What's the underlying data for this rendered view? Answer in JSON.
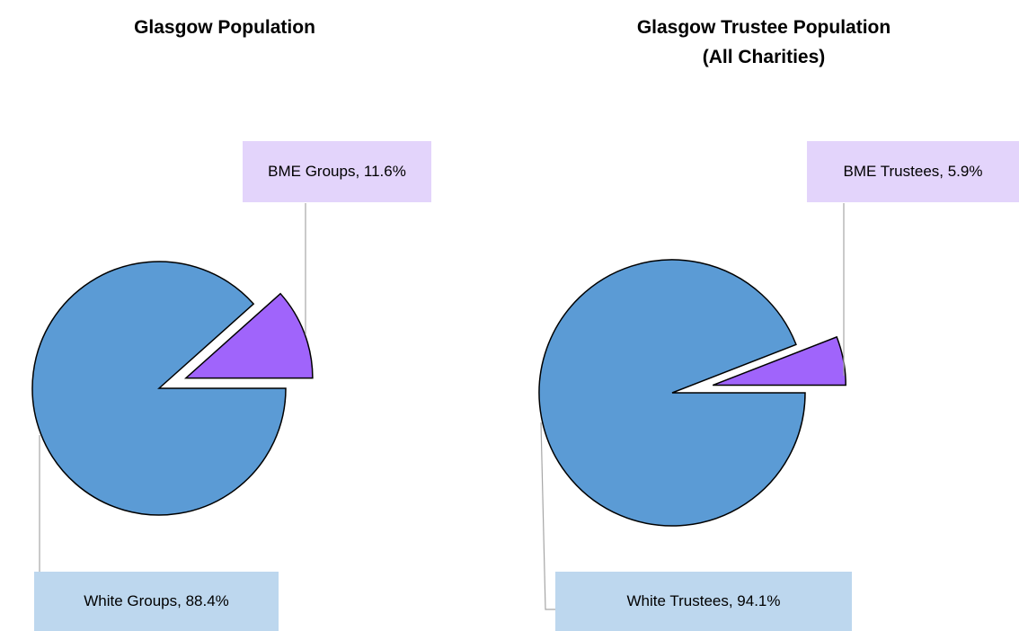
{
  "chart_data": [
    {
      "type": "pie",
      "title": "Glasgow Population",
      "slices": [
        {
          "name": "BME Groups",
          "value": 11.6,
          "label": "BME Groups, 11.6%",
          "color": "#a064fb",
          "label_color": "#e3d4fb"
        },
        {
          "name": "White Groups",
          "value": 88.4,
          "label": "White Groups, 88.4%",
          "color": "#5b9bd5",
          "label_color": "#bdd7ee"
        }
      ],
      "exploded": "BME Groups"
    },
    {
      "type": "pie",
      "title_line1": "Glasgow Trustee Population",
      "title_line2": "(All Charities)",
      "slices": [
        {
          "name": "BME Trustees",
          "value": 5.9,
          "label": "BME Trustees, 5.9%",
          "color": "#a064fb",
          "label_color": "#e3d4fb"
        },
        {
          "name": "White Trustees",
          "value": 94.1,
          "label": "White Trustees, 94.1%",
          "color": "#5b9bd5",
          "label_color": "#bdd7ee"
        }
      ],
      "exploded": "BME Trustees"
    }
  ]
}
